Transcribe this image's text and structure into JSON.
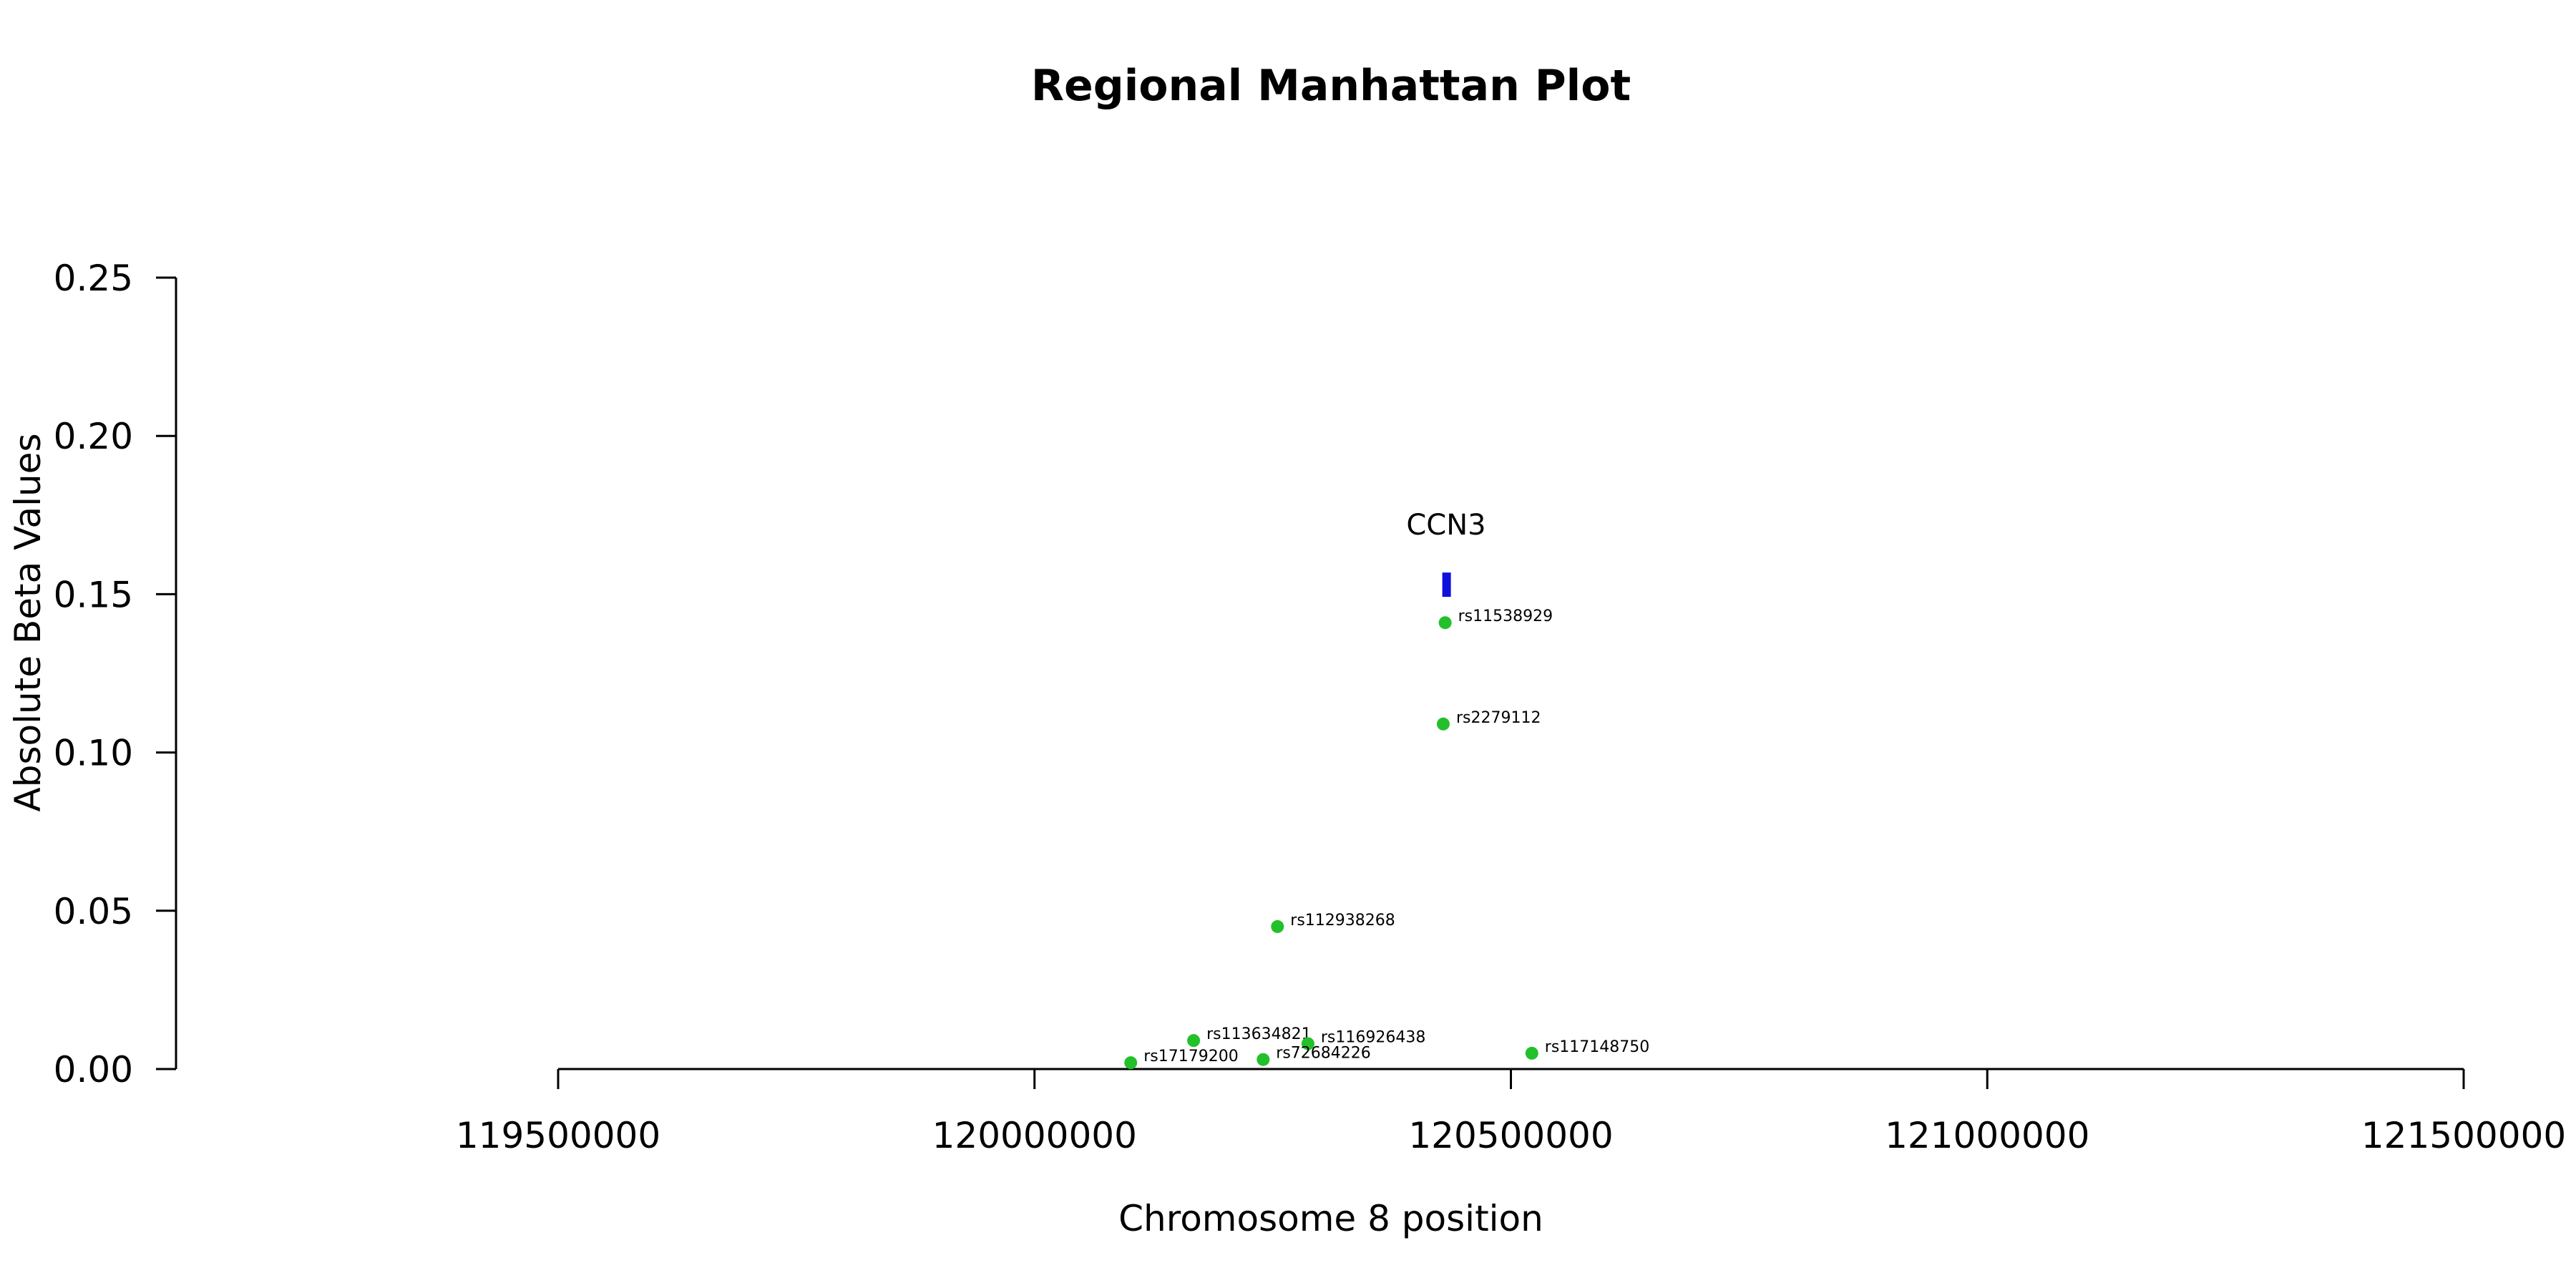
{
  "chart_data": {
    "type": "scatter",
    "title": "Regional Manhattan Plot",
    "xlabel": "Chromosome 8 position",
    "ylabel": "Absolute Beta Values",
    "xlim": [
      119500000,
      121500000
    ],
    "ylim": [
      0,
      0.25
    ],
    "x_ticks": [
      119500000,
      120000000,
      120500000,
      121000000,
      121500000
    ],
    "x_tick_labels": [
      "119500000",
      "120000000",
      "120500000",
      "121000000",
      "121500000"
    ],
    "y_ticks": [
      0,
      0.05,
      0.1,
      0.15,
      0.2,
      0.25
    ],
    "y_tick_labels": [
      "0.00",
      "0.05",
      "0.10",
      "0.15",
      "0.20",
      "0.25"
    ],
    "grid": false,
    "point_color": "#22c02a",
    "gene_color": "#1010dd",
    "points": [
      {
        "label": "rs11538929",
        "x": 120431000,
        "y": 0.141
      },
      {
        "label": "rs2279112",
        "x": 120429000,
        "y": 0.109
      },
      {
        "label": "rs112938268",
        "x": 120255000,
        "y": 0.045
      },
      {
        "label": "rs113634821",
        "x": 120167000,
        "y": 0.009
      },
      {
        "label": "rs116926438",
        "x": 120287000,
        "y": 0.008
      },
      {
        "label": "rs72684226",
        "x": 120240000,
        "y": 0.003
      },
      {
        "label": "rs17179200",
        "x": 120101000,
        "y": 0.002
      },
      {
        "label": "rs117148750",
        "x": 120522000,
        "y": 0.005
      }
    ],
    "genes": [
      {
        "name": "CCN3",
        "start": 120428000,
        "end": 120436000,
        "y": 0.153
      }
    ]
  }
}
